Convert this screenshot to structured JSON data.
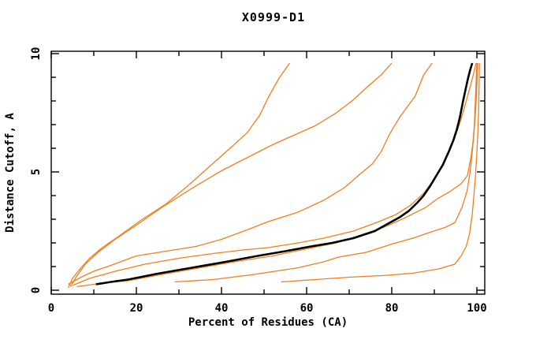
{
  "title": "X0999-D1",
  "chart_data": {
    "type": "line",
    "title": "X0999-D1",
    "xlabel": "Percent of Residues (CA)",
    "ylabel": "Distance Cutoff, A",
    "xlim": [
      0,
      102
    ],
    "ylim": [
      0,
      10
    ],
    "x_tick_labels": [
      "0",
      "20",
      "40",
      "60",
      "80",
      "100"
    ],
    "x_tick_values": [
      0,
      20,
      40,
      60,
      80,
      100
    ],
    "x_minor_tick_values": [
      10,
      30,
      50,
      70,
      90
    ],
    "y_tick_labels": [
      "0",
      "5",
      "10"
    ],
    "y_tick_values": [
      0,
      5,
      10
    ],
    "y_minor_tick_values": [
      1,
      2,
      3,
      4,
      6,
      7,
      8,
      9
    ],
    "grid": false,
    "legend": "none",
    "colors": {
      "model": "#ee7f22",
      "reference": "#000000",
      "frame": "#000000"
    },
    "series": [
      {
        "name": "orange-model-1",
        "color": "#ee7f22",
        "stroke_width": 1.3,
        "points": [
          [
            4,
            0.1
          ],
          [
            5,
            0.5
          ],
          [
            7,
            0.95
          ],
          [
            9,
            1.35
          ],
          [
            12,
            1.8
          ],
          [
            16,
            2.3
          ],
          [
            21,
            2.95
          ],
          [
            27,
            3.65
          ],
          [
            32,
            4.4
          ],
          [
            37,
            5.2
          ],
          [
            42,
            6.0
          ],
          [
            46,
            6.65
          ],
          [
            49,
            7.4
          ],
          [
            51,
            8.15
          ],
          [
            53.5,
            8.95
          ],
          [
            56,
            9.6
          ]
        ]
      },
      {
        "name": "orange-model-2",
        "color": "#ee7f22",
        "stroke_width": 1.3,
        "points": [
          [
            4.5,
            0.15
          ],
          [
            6,
            0.6
          ],
          [
            8,
            1.1
          ],
          [
            11,
            1.6
          ],
          [
            15,
            2.15
          ],
          [
            20,
            2.75
          ],
          [
            26,
            3.5
          ],
          [
            33,
            4.3
          ],
          [
            40,
            5.05
          ],
          [
            46,
            5.6
          ],
          [
            52,
            6.15
          ],
          [
            57,
            6.55
          ],
          [
            62,
            6.95
          ],
          [
            67,
            7.5
          ],
          [
            71,
            8.05
          ],
          [
            74,
            8.55
          ],
          [
            77.5,
            9.1
          ],
          [
            80,
            9.6
          ]
        ]
      },
      {
        "name": "orange-model-3",
        "color": "#ee7f22",
        "stroke_width": 1.3,
        "points": [
          [
            4,
            0.25
          ],
          [
            7,
            0.55
          ],
          [
            10,
            0.8
          ],
          [
            14,
            1.05
          ],
          [
            20,
            1.45
          ],
          [
            27,
            1.65
          ],
          [
            34,
            1.85
          ],
          [
            40,
            2.15
          ],
          [
            46,
            2.55
          ],
          [
            51,
            2.9
          ],
          [
            58,
            3.3
          ],
          [
            64,
            3.8
          ],
          [
            69,
            4.35
          ],
          [
            72.5,
            4.9
          ],
          [
            75.5,
            5.35
          ],
          [
            77.5,
            5.85
          ],
          [
            79.5,
            6.6
          ],
          [
            82,
            7.35
          ],
          [
            85.5,
            8.2
          ],
          [
            87.5,
            9.1
          ],
          [
            89.5,
            9.6
          ]
        ]
      },
      {
        "name": "orange-model-4",
        "color": "#ee7f22",
        "stroke_width": 1.3,
        "points": [
          [
            5,
            0.2
          ],
          [
            9,
            0.5
          ],
          [
            15,
            0.8
          ],
          [
            22,
            1.1
          ],
          [
            30,
            1.35
          ],
          [
            38,
            1.55
          ],
          [
            45,
            1.7
          ],
          [
            51,
            1.8
          ],
          [
            58,
            2.0
          ],
          [
            64,
            2.2
          ],
          [
            71,
            2.5
          ],
          [
            77,
            2.9
          ],
          [
            81,
            3.2
          ],
          [
            84.5,
            3.6
          ],
          [
            87.5,
            4.1
          ],
          [
            90,
            4.7
          ],
          [
            92,
            5.3
          ],
          [
            93.8,
            6.0
          ],
          [
            95.2,
            6.65
          ],
          [
            96.4,
            7.3
          ],
          [
            97.5,
            8.0
          ],
          [
            98.5,
            8.65
          ],
          [
            99.3,
            9.2
          ],
          [
            99.8,
            9.6
          ]
        ]
      },
      {
        "name": "orange-model-5",
        "color": "#ee7f22",
        "stroke_width": 1.3,
        "points": [
          [
            6,
            0.15
          ],
          [
            12,
            0.3
          ],
          [
            18,
            0.4
          ],
          [
            27,
            0.7
          ],
          [
            35,
            0.95
          ],
          [
            43,
            1.2
          ],
          [
            52,
            1.45
          ],
          [
            60,
            1.75
          ],
          [
            67,
            2.0
          ],
          [
            73,
            2.35
          ],
          [
            78,
            2.65
          ],
          [
            83,
            3.05
          ],
          [
            88,
            3.5
          ],
          [
            91,
            3.9
          ],
          [
            93.5,
            4.15
          ],
          [
            96.3,
            4.5
          ],
          [
            97.8,
            4.85
          ],
          [
            98.6,
            5.6
          ],
          [
            99.2,
            6.4
          ],
          [
            99.6,
            7.3
          ],
          [
            99.9,
            8.3
          ],
          [
            100.1,
            9.0
          ],
          [
            100.2,
            9.6
          ]
        ]
      },
      {
        "name": "orange-model-6",
        "color": "#ee7f22",
        "stroke_width": 1.3,
        "points": [
          [
            29,
            0.35
          ],
          [
            38,
            0.45
          ],
          [
            47,
            0.65
          ],
          [
            58,
            0.95
          ],
          [
            64,
            1.2
          ],
          [
            67.5,
            1.4
          ],
          [
            74,
            1.6
          ],
          [
            80,
            1.95
          ],
          [
            85,
            2.2
          ],
          [
            89,
            2.45
          ],
          [
            92.5,
            2.65
          ],
          [
            94.8,
            2.85
          ],
          [
            96.5,
            3.5
          ],
          [
            97.7,
            4.2
          ],
          [
            98.4,
            5.0
          ],
          [
            99,
            6.0
          ],
          [
            99.4,
            7.0
          ],
          [
            99.6,
            7.8
          ],
          [
            99.8,
            8.7
          ],
          [
            100,
            9.6
          ]
        ]
      },
      {
        "name": "orange-model-7",
        "color": "#ee7f22",
        "stroke_width": 1.3,
        "points": [
          [
            54,
            0.35
          ],
          [
            62,
            0.45
          ],
          [
            70,
            0.55
          ],
          [
            78,
            0.62
          ],
          [
            85,
            0.72
          ],
          [
            91,
            0.9
          ],
          [
            94.8,
            1.1
          ],
          [
            96.3,
            1.45
          ],
          [
            97.5,
            1.85
          ],
          [
            98.3,
            2.4
          ],
          [
            98.9,
            3.2
          ],
          [
            99.3,
            4.0
          ],
          [
            99.7,
            4.9
          ],
          [
            100,
            5.8
          ],
          [
            100.2,
            6.6
          ],
          [
            100.4,
            7.5
          ],
          [
            100.5,
            8.5
          ],
          [
            100.6,
            9.6
          ]
        ]
      },
      {
        "name": "black-reference-model",
        "color": "#000000",
        "stroke_width": 2.6,
        "points": [
          [
            10.5,
            0.25
          ],
          [
            14,
            0.35
          ],
          [
            18,
            0.45
          ],
          [
            25,
            0.7
          ],
          [
            33,
            0.95
          ],
          [
            41,
            1.2
          ],
          [
            48.5,
            1.45
          ],
          [
            55,
            1.65
          ],
          [
            61,
            1.85
          ],
          [
            66,
            2.0
          ],
          [
            71,
            2.2
          ],
          [
            76,
            2.5
          ],
          [
            79,
            2.8
          ],
          [
            82,
            3.1
          ],
          [
            84,
            3.35
          ],
          [
            86,
            3.7
          ],
          [
            87.5,
            4.0
          ],
          [
            89,
            4.4
          ],
          [
            90.5,
            4.85
          ],
          [
            92,
            5.3
          ],
          [
            93.5,
            5.9
          ],
          [
            94.5,
            6.35
          ],
          [
            95.3,
            6.8
          ],
          [
            96,
            7.3
          ],
          [
            96.7,
            7.95
          ],
          [
            97.3,
            8.45
          ],
          [
            97.9,
            8.95
          ],
          [
            98.4,
            9.3
          ],
          [
            98.9,
            9.6
          ]
        ]
      }
    ]
  }
}
